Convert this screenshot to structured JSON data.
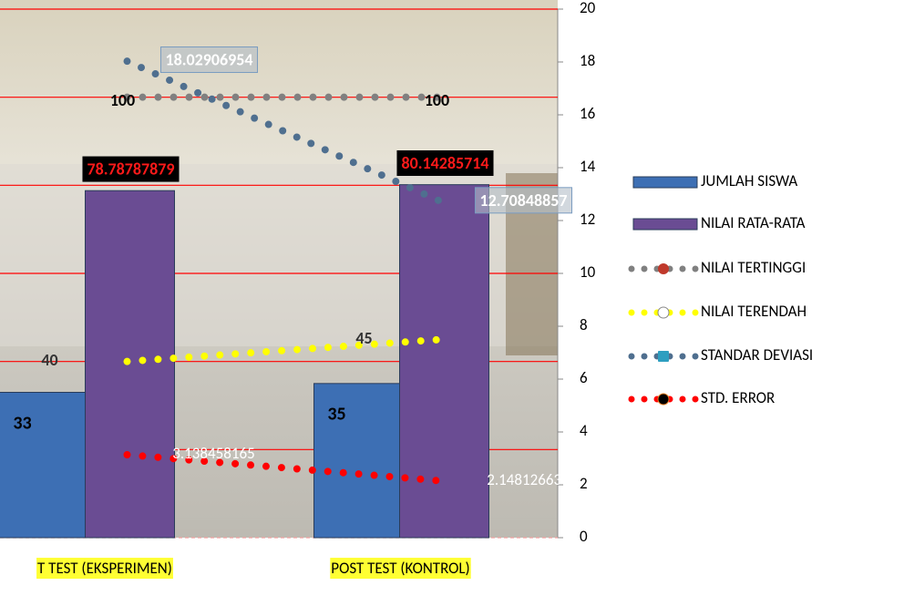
{
  "chart_data": {
    "type": "bar",
    "categories": [
      "T TEST (EKSPERIMEN)",
      "POST TEST (KONTROL)"
    ],
    "ylim": [
      0,
      120
    ],
    "yticks": [
      0,
      20,
      40,
      60,
      80,
      100,
      120
    ],
    "grid": true,
    "y2lim": [
      0,
      20
    ],
    "y2ticks": [
      0,
      2,
      4,
      6,
      8,
      10,
      12,
      14,
      16,
      18,
      20
    ],
    "legend": "right",
    "series": [
      {
        "name": "JUMLAH SISWA",
        "type": "bar",
        "color": "#3d6fb4",
        "values": [
          33,
          35
        ]
      },
      {
        "name": "NILAI RATA-RATA",
        "type": "bar",
        "color": "#6a4c93",
        "values": [
          78.78787879,
          80.14285714
        ]
      },
      {
        "name": "NILAI TERTINGGI",
        "type": "line",
        "color": "#808080",
        "values": [
          100,
          100
        ]
      },
      {
        "name": "NILAI TERENDAH",
        "type": "line",
        "color": "#ffff00",
        "values": [
          40,
          45
        ]
      },
      {
        "name": "STANDAR DEVIASI",
        "type": "line",
        "axis": "y2",
        "color": "#4f6f8f",
        "values": [
          18.02906954,
          12.70848857
        ]
      },
      {
        "name": "STD. ERROR",
        "type": "line",
        "axis": "y2",
        "color": "#ff0000",
        "values": [
          3.138458165,
          2.148126638
        ]
      }
    ]
  }
}
